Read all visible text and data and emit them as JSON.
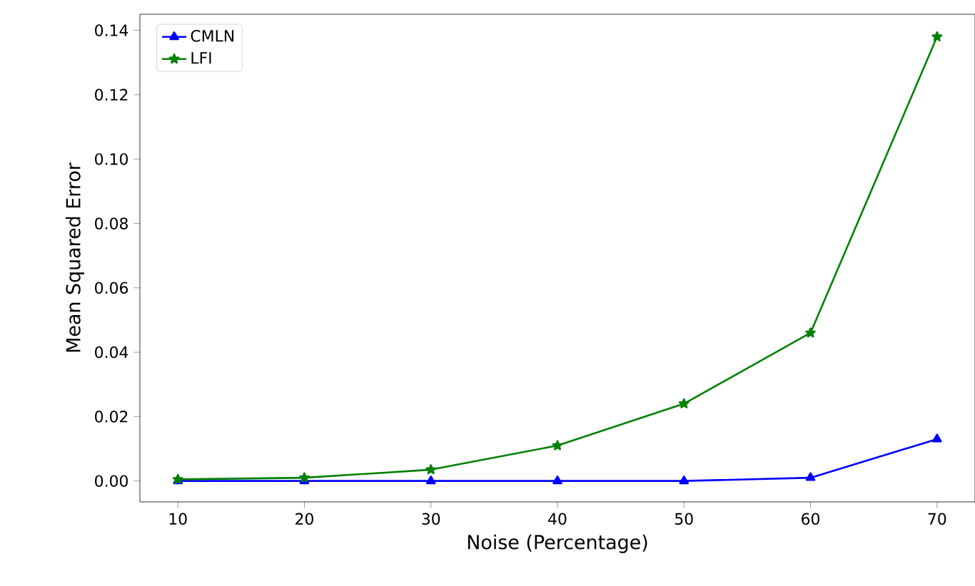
{
  "chart_data": {
    "type": "line",
    "xlabel": "Noise (Percentage)",
    "ylabel": "Mean Squared Error",
    "x": [
      10,
      20,
      30,
      40,
      50,
      60,
      70
    ],
    "series": [
      {
        "name": "CMLN",
        "color": "#0000ff",
        "marker": "triangle",
        "values": [
          0,
          0,
          0,
          0,
          0,
          0.001,
          0.013
        ]
      },
      {
        "name": "LFI",
        "color": "#008000",
        "marker": "star",
        "values": [
          0.0005,
          0.001,
          0.0035,
          0.011,
          0.024,
          0.046,
          0.138
        ]
      }
    ],
    "xlim": [
      7,
      73
    ],
    "ylim": [
      -0.0065,
      0.145
    ],
    "xticks": [
      10,
      20,
      30,
      40,
      50,
      60,
      70
    ],
    "yticks": [
      {
        "value": 0,
        "label": "0.00"
      },
      {
        "value": 0.02,
        "label": "0.02"
      },
      {
        "value": 0.04,
        "label": "0.04"
      },
      {
        "value": 0.06,
        "label": "0.06"
      },
      {
        "value": 0.08,
        "label": "0.08"
      },
      {
        "value": 0.1,
        "label": "0.10"
      },
      {
        "value": 0.12,
        "label": "0.12"
      },
      {
        "value": 0.14,
        "label": "0.14"
      }
    ],
    "legend": "top left",
    "grid": false,
    "line_style": "solid"
  }
}
